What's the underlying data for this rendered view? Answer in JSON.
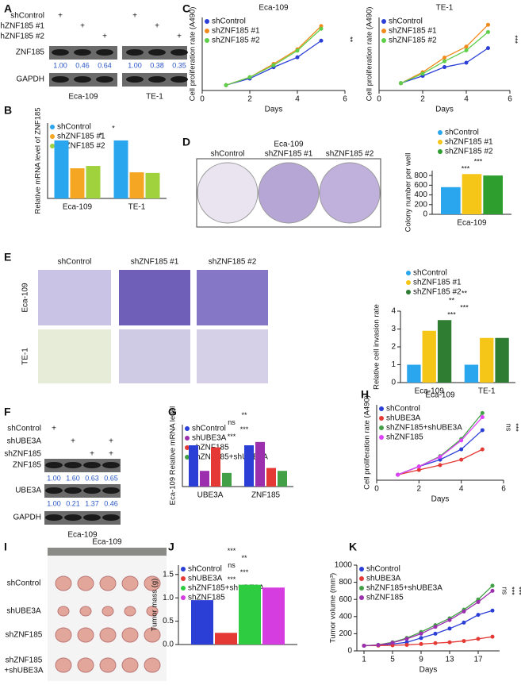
{
  "panel_letters": [
    "A",
    "B",
    "C",
    "D",
    "E",
    "F",
    "G",
    "H",
    "I",
    "J",
    "K"
  ],
  "blot_a": {
    "rows": [
      "shControl",
      "shZNF185 #1",
      "shZNF185 #2"
    ],
    "signs": [
      [
        "+",
        null,
        null,
        "+",
        null,
        null
      ],
      [
        null,
        "+",
        null,
        null,
        "+",
        null
      ],
      [
        null,
        null,
        "+",
        null,
        null,
        "+"
      ]
    ],
    "bands": [
      "ZNF185",
      "GAPDH"
    ],
    "quant": [
      "1.00",
      "0.46",
      "0.64",
      "1.00",
      "0.38",
      "0.35"
    ],
    "groups": [
      "Eca-109",
      "TE-1"
    ]
  },
  "blot_f": {
    "rows": [
      "shControl",
      "shUBE3A",
      "shZNF185"
    ],
    "signs": [
      [
        "+",
        null,
        null,
        null
      ],
      [
        null,
        "+",
        null,
        "+"
      ],
      [
        null,
        null,
        "+",
        "+"
      ]
    ],
    "bands": [
      "ZNF185",
      "UBE3A",
      "GAPDH"
    ],
    "quant_znf185": [
      "1.00",
      "1.60",
      "0.63",
      "0.65"
    ],
    "quant_ube3a": [
      "1.00",
      "0.21",
      "1.37",
      "0.46"
    ],
    "group": "Eca-109"
  },
  "image_d": {
    "title": "Eca-109",
    "columns": [
      "shControl",
      "shZNF185 #1",
      "shZNF185 #2"
    ]
  },
  "image_e": {
    "columns": [
      "shControl",
      "shZNF185 #1",
      "shZNF185 #2"
    ],
    "rows": [
      "Eca-109",
      "TE-1"
    ]
  },
  "image_i": {
    "title": "Eca-109",
    "rows": [
      "shControl",
      "shUBE3A",
      "shZNF185",
      [
        "shZNF185",
        "+shUBE3A"
      ]
    ]
  },
  "chart_data": [
    {
      "type": "line",
      "title": "Eca-109",
      "xlabel": "Days",
      "ylabel": "Cell proliferation rate (A490)",
      "x": [
        1,
        2,
        3,
        4,
        5
      ],
      "xlim": [
        0,
        6
      ],
      "xticks": [
        0,
        2,
        4,
        6
      ],
      "ylim": [
        0,
        1.1
      ],
      "legend": "upper left",
      "annotations": [
        "**"
      ],
      "series": [
        {
          "name": "shControl",
          "color": "#2b3fd6",
          "values": [
            0.08,
            0.18,
            0.35,
            0.5,
            0.75
          ]
        },
        {
          "name": "shZNF185 #1",
          "color": "#f08a1c",
          "values": [
            0.08,
            0.2,
            0.4,
            0.62,
            0.97
          ]
        },
        {
          "name": "shZNF185 #2",
          "color": "#5fcf4a",
          "values": [
            0.08,
            0.2,
            0.38,
            0.6,
            0.93
          ]
        }
      ]
    },
    {
      "type": "line",
      "title": "TE-1",
      "xlabel": "Days",
      "ylabel": "Cell proliferation rate (A490)",
      "x": [
        1,
        2,
        3,
        4,
        5
      ],
      "xlim": [
        0,
        6
      ],
      "xticks": [
        0,
        2,
        4,
        6
      ],
      "ylim": [
        0,
        1.0
      ],
      "legend": "upper left",
      "annotations": [
        "***"
      ],
      "series": [
        {
          "name": "shControl",
          "color": "#2b3fd6",
          "values": [
            0.1,
            0.2,
            0.32,
            0.38,
            0.58
          ]
        },
        {
          "name": "shZNF185 #1",
          "color": "#f08a1c",
          "values": [
            0.1,
            0.25,
            0.45,
            0.6,
            0.9
          ]
        },
        {
          "name": "shZNF185 #2",
          "color": "#5fcf4a",
          "values": [
            0.1,
            0.23,
            0.4,
            0.55,
            0.8
          ]
        }
      ]
    },
    {
      "type": "bar",
      "ylabel": "Relative mRNA level of ZNF185",
      "categories": [
        "Eca-109",
        "TE-1"
      ],
      "ylim": [
        0,
        1.3
      ],
      "legend": "upper left",
      "annotations": [
        "*",
        "*"
      ],
      "series": [
        {
          "name": "shControl",
          "color": "#2aa6ee",
          "values": [
            1.0,
            1.0
          ]
        },
        {
          "name": "shZNF185 #1",
          "color": "#f5a623",
          "values": [
            0.52,
            0.45
          ]
        },
        {
          "name": "shZNF185 #2",
          "color": "#9fd23c",
          "values": [
            0.56,
            0.44
          ]
        }
      ]
    },
    {
      "type": "bar",
      "ylabel": "Colony number per well",
      "categories": [
        "Eca-109"
      ],
      "ylim": [
        0,
        900
      ],
      "yticks": [
        0,
        200,
        400,
        600,
        800
      ],
      "legend": "above",
      "annotations": [
        "***",
        "***"
      ],
      "series": [
        {
          "name": "shControl",
          "color": "#2aa6ee",
          "values": [
            560
          ]
        },
        {
          "name": "shZNF185 #1",
          "color": "#f5c518",
          "values": [
            830
          ]
        },
        {
          "name": "shZNF185 #2",
          "color": "#2e9e2e",
          "values": [
            800
          ]
        }
      ]
    },
    {
      "type": "bar",
      "ylabel": "Relative cell invasion rate",
      "categories": [
        "Eca-109",
        "TE-1"
      ],
      "ylim": [
        0,
        4
      ],
      "yticks": [
        0,
        1,
        2,
        3,
        4
      ],
      "legend": "above",
      "annotations": [
        "***",
        "***",
        "**",
        "**"
      ],
      "series": [
        {
          "name": "shControl",
          "color": "#2aa6ee",
          "values": [
            1.0,
            1.0
          ]
        },
        {
          "name": "shZNF185 #1",
          "color": "#f5c518",
          "values": [
            2.9,
            2.5
          ]
        },
        {
          "name": "shZNF185 #2",
          "color": "#2e7d32",
          "values": [
            3.5,
            2.5
          ]
        }
      ]
    },
    {
      "type": "bar",
      "ylabel": "Eca-109 Relative mRNA level",
      "categories": [
        "UBE3A",
        "ZNF185"
      ],
      "ylim": [
        0,
        1.5
      ],
      "legend": "upper left",
      "annotations": [
        "***",
        "***",
        "ns",
        "**"
      ],
      "series": [
        {
          "name": "shControl",
          "color": "#2b3fd6",
          "values": [
            1.0,
            1.0
          ]
        },
        {
          "name": "shUBE3A",
          "color": "#9b2fae",
          "values": [
            0.38,
            1.08
          ]
        },
        {
          "name": "shZNF185",
          "color": "#e53935",
          "values": [
            0.95,
            0.45
          ]
        },
        {
          "name": "shZNF185+shUBE3A",
          "color": "#43a047",
          "values": [
            0.33,
            0.38
          ]
        }
      ]
    },
    {
      "type": "line",
      "title": "Eca-109",
      "xlabel": "Days",
      "ylabel": "Cell proliferation rate (A490)",
      "x": [
        1,
        2,
        3,
        4,
        5
      ],
      "xlim": [
        0,
        6
      ],
      "xticks": [
        0,
        2,
        4,
        6
      ],
      "ylim": [
        0,
        1.1
      ],
      "legend": "upper left",
      "annotations": [
        "ns",
        "***",
        "***"
      ],
      "series": [
        {
          "name": "shControl",
          "color": "#2b3fd6",
          "values": [
            0.08,
            0.2,
            0.3,
            0.45,
            0.73
          ]
        },
        {
          "name": "shUBE3A",
          "color": "#e53935",
          "values": [
            0.08,
            0.15,
            0.22,
            0.3,
            0.45
          ]
        },
        {
          "name": "shZNF185+shUBE3A",
          "color": "#43a047",
          "values": [
            0.08,
            0.2,
            0.35,
            0.6,
            0.98
          ]
        },
        {
          "name": "shZNF185",
          "color": "#e040fb",
          "values": [
            0.08,
            0.2,
            0.34,
            0.58,
            0.92
          ]
        }
      ]
    },
    {
      "type": "bar",
      "ylabel": "Tumor mass (g)",
      "categories": [
        null
      ],
      "ylim": [
        0,
        1.7
      ],
      "yticks": [
        {
          "value": 0,
          "label": "0.0"
        },
        {
          "value": 0.5,
          "label": "0.5"
        },
        {
          "value": 1,
          "label": "1.0"
        },
        {
          "value": 1.5,
          "label": "1.5"
        }
      ],
      "legend": "upper left",
      "annotations": [
        "***",
        "***",
        "ns",
        "**",
        "***"
      ],
      "series": [
        {
          "name": "shControl",
          "color": "#2b3fd6",
          "values": [
            0.95
          ]
        },
        {
          "name": "shUBE3A",
          "color": "#e53935",
          "values": [
            0.25
          ]
        },
        {
          "name": "shZNF185+shUBE3A",
          "color": "#2ecc40",
          "values": [
            1.28
          ]
        },
        {
          "name": "shZNF185",
          "color": "#d63de0",
          "values": [
            1.22
          ]
        }
      ]
    },
    {
      "type": "line",
      "xlabel": "Days",
      "ylabel": "Tumor volume (mm³)",
      "x": [
        1,
        3,
        5,
        7,
        9,
        11,
        13,
        15,
        17,
        19
      ],
      "xlim": [
        0,
        20
      ],
      "xticks": [
        1,
        5,
        9,
        13,
        17
      ],
      "ylim": [
        0,
        1000
      ],
      "yticks": [
        0,
        200,
        400,
        600,
        800,
        1000
      ],
      "legend": "upper left",
      "annotations": [
        "ns",
        "***",
        "***"
      ],
      "series": [
        {
          "name": "shControl",
          "color": "#2b3fd6",
          "values": [
            60,
            65,
            80,
            100,
            150,
            200,
            260,
            330,
            420,
            470
          ]
        },
        {
          "name": "shUBE3A",
          "color": "#e53935",
          "values": [
            60,
            62,
            65,
            70,
            80,
            90,
            100,
            115,
            140,
            165
          ]
        },
        {
          "name": "shZNF185+shUBE3A",
          "color": "#43a047",
          "values": [
            60,
            70,
            100,
            150,
            220,
            300,
            380,
            480,
            600,
            760
          ]
        },
        {
          "name": "shZNF185",
          "color": "#9b2fae",
          "values": [
            60,
            68,
            95,
            140,
            200,
            280,
            360,
            460,
            570,
            700
          ]
        }
      ]
    }
  ]
}
